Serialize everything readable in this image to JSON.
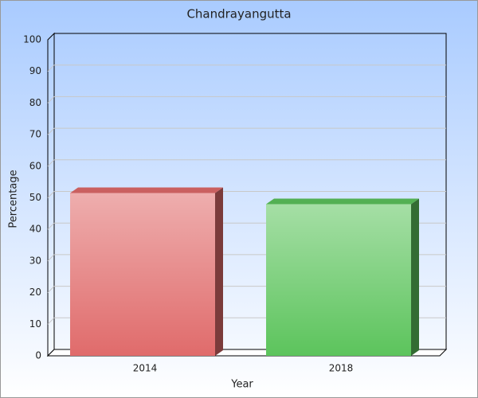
{
  "chart_data": {
    "type": "bar3d",
    "title": "Chandrayangutta",
    "x_label": "Year",
    "y_label": "Percentage",
    "categories": [
      "2014",
      "2018"
    ],
    "values": [
      51.5,
      48
    ],
    "colors": [
      "#e06b6b",
      "#5cc45c"
    ],
    "ylim": [
      0,
      100
    ],
    "yticks": [
      0,
      10,
      20,
      30,
      40,
      50,
      60,
      70,
      80,
      90,
      100
    ],
    "grid": true
  }
}
